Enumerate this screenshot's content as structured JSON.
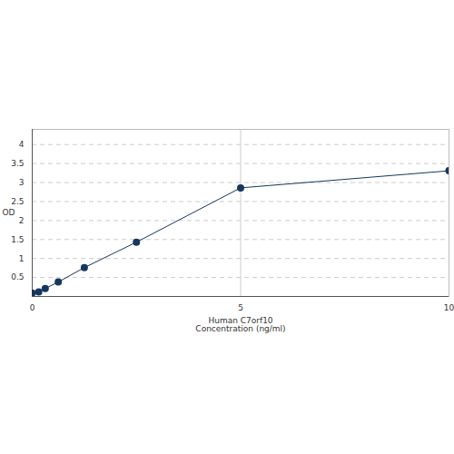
{
  "chart_data": {
    "type": "line",
    "xlabel": "Human C7orf10\nConcentration (ng/ml)",
    "ylabel": "OD",
    "x": [
      0,
      0.156,
      0.312,
      0.625,
      1.25,
      2.5,
      5,
      10
    ],
    "values": [
      0.09,
      0.12,
      0.21,
      0.38,
      0.76,
      1.43,
      2.86,
      3.31
    ],
    "color": "#17375e",
    "marker": "circle",
    "xlim": [
      0,
      10
    ],
    "xticks": [
      0,
      5,
      10
    ],
    "ylim": [
      0,
      4.4
    ],
    "yticks": [
      0.5,
      1,
      1.5,
      2,
      2.5,
      3,
      3.5,
      4
    ],
    "grid": true
  }
}
